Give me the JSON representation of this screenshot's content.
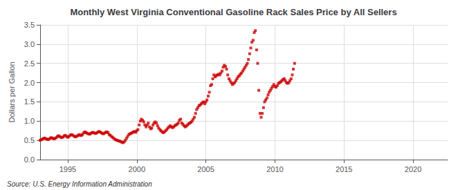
{
  "chart_data": {
    "type": "scatter",
    "title": "Monthly West Virginia Conventional Gasoline Rack Sales Price by All Sellers",
    "ylabel": "Dollars per Gallon",
    "annotations": [
      "Source: U.S. Energy Information Administration"
    ],
    "color": "#cc0000",
    "marker": "square",
    "grid": true,
    "xlim": [
      1993.0,
      2022.5
    ],
    "xticks": [
      1995,
      2000,
      2005,
      2010,
      2015,
      2020
    ],
    "ylim": [
      0.0,
      3.5
    ],
    "yticks": [
      {
        "value": 0.0,
        "label": "0.0"
      },
      0.5,
      {
        "value": 1.0,
        "label": "1.0"
      },
      1.5,
      {
        "value": 2.0,
        "label": "2.0"
      },
      2.5,
      {
        "value": 3.0,
        "label": "3.0"
      },
      3.5
    ],
    "x": [
      1993.0,
      1993.08,
      1993.17,
      1993.25,
      1993.33,
      1993.42,
      1993.5,
      1993.58,
      1993.67,
      1993.75,
      1993.83,
      1993.92,
      1994.0,
      1994.08,
      1994.17,
      1994.25,
      1994.33,
      1994.42,
      1994.5,
      1994.58,
      1994.67,
      1994.75,
      1994.83,
      1994.92,
      1995.0,
      1995.08,
      1995.17,
      1995.25,
      1995.33,
      1995.42,
      1995.5,
      1995.58,
      1995.67,
      1995.75,
      1995.83,
      1995.92,
      1996.0,
      1996.08,
      1996.17,
      1996.25,
      1996.33,
      1996.42,
      1996.5,
      1996.58,
      1996.67,
      1996.75,
      1996.83,
      1996.92,
      1997.0,
      1997.08,
      1997.17,
      1997.25,
      1997.33,
      1997.42,
      1997.5,
      1997.58,
      1997.67,
      1997.75,
      1997.83,
      1997.92,
      1998.0,
      1998.08,
      1998.17,
      1998.25,
      1998.33,
      1998.42,
      1998.5,
      1998.58,
      1998.67,
      1998.75,
      1998.83,
      1998.92,
      1999.0,
      1999.08,
      1999.17,
      1999.25,
      1999.33,
      1999.42,
      1999.5,
      1999.58,
      1999.67,
      1999.75,
      1999.83,
      1999.92,
      2000.0,
      2000.08,
      2000.17,
      2000.25,
      2000.33,
      2000.42,
      2000.5,
      2000.58,
      2000.67,
      2000.75,
      2000.83,
      2000.92,
      2001.0,
      2001.08,
      2001.17,
      2001.25,
      2001.33,
      2001.42,
      2001.5,
      2001.58,
      2001.67,
      2001.75,
      2001.83,
      2001.92,
      2002.0,
      2002.08,
      2002.17,
      2002.25,
      2002.33,
      2002.42,
      2002.5,
      2002.58,
      2002.67,
      2002.75,
      2002.83,
      2002.92,
      2003.0,
      2003.08,
      2003.17,
      2003.25,
      2003.33,
      2003.42,
      2003.5,
      2003.58,
      2003.67,
      2003.75,
      2003.83,
      2003.92,
      2004.0,
      2004.08,
      2004.17,
      2004.25,
      2004.33,
      2004.42,
      2004.5,
      2004.58,
      2004.67,
      2004.75,
      2004.83,
      2004.92,
      2005.0,
      2005.08,
      2005.17,
      2005.25,
      2005.33,
      2005.42,
      2005.5,
      2005.58,
      2005.67,
      2005.75,
      2005.83,
      2005.92,
      2006.0,
      2006.08,
      2006.17,
      2006.25,
      2006.33,
      2006.42,
      2006.5,
      2006.58,
      2006.67,
      2006.75,
      2006.83,
      2006.92,
      2007.0,
      2007.08,
      2007.17,
      2007.25,
      2007.33,
      2007.42,
      2007.5,
      2007.58,
      2007.67,
      2007.75,
      2007.83,
      2007.92,
      2008.0,
      2008.08,
      2008.17,
      2008.25,
      2008.33,
      2008.42,
      2008.5,
      2008.58,
      2008.67,
      2008.75,
      2008.83,
      2008.92,
      2009.0,
      2009.08,
      2009.17,
      2009.25,
      2009.33,
      2009.42,
      2009.5,
      2009.58,
      2009.67,
      2009.75,
      2009.83,
      2009.92,
      2010.0,
      2010.08,
      2010.17,
      2010.25,
      2010.33,
      2010.42,
      2010.5,
      2010.58,
      2010.67,
      2010.75,
      2010.83,
      2010.92,
      2011.0,
      2011.08,
      2011.17,
      2011.25,
      2011.33,
      2011.42
    ],
    "values": [
      0.5,
      0.52,
      0.53,
      0.55,
      0.56,
      0.54,
      0.53,
      0.52,
      0.54,
      0.56,
      0.57,
      0.55,
      0.54,
      0.55,
      0.57,
      0.6,
      0.62,
      0.6,
      0.58,
      0.57,
      0.59,
      0.62,
      0.63,
      0.6,
      0.58,
      0.6,
      0.63,
      0.65,
      0.64,
      0.62,
      0.6,
      0.59,
      0.61,
      0.63,
      0.65,
      0.63,
      0.63,
      0.66,
      0.7,
      0.72,
      0.7,
      0.68,
      0.67,
      0.66,
      0.68,
      0.7,
      0.71,
      0.69,
      0.68,
      0.69,
      0.71,
      0.73,
      0.72,
      0.7,
      0.68,
      0.67,
      0.69,
      0.71,
      0.72,
      0.7,
      0.65,
      0.63,
      0.6,
      0.58,
      0.55,
      0.53,
      0.51,
      0.5,
      0.49,
      0.48,
      0.47,
      0.45,
      0.44,
      0.46,
      0.5,
      0.55,
      0.6,
      0.65,
      0.67,
      0.68,
      0.7,
      0.72,
      0.73,
      0.71,
      0.75,
      0.78,
      0.9,
      1.0,
      1.05,
      1.02,
      0.98,
      0.9,
      0.85,
      0.9,
      0.95,
      0.85,
      0.8,
      0.82,
      0.9,
      0.95,
      0.98,
      0.95,
      0.88,
      0.82,
      0.78,
      0.75,
      0.72,
      0.7,
      0.72,
      0.75,
      0.78,
      0.82,
      0.85,
      0.88,
      0.85,
      0.83,
      0.85,
      0.88,
      0.9,
      0.92,
      0.95,
      1.02,
      1.05,
      0.95,
      0.92,
      0.88,
      0.85,
      0.87,
      0.9,
      0.93,
      0.95,
      0.97,
      1.0,
      1.05,
      1.1,
      1.2,
      1.3,
      1.35,
      1.4,
      1.42,
      1.45,
      1.48,
      1.5,
      1.45,
      1.5,
      1.55,
      1.65,
      1.75,
      1.92,
      1.95,
      2.1,
      2.2,
      2.15,
      2.18,
      2.2,
      2.22,
      2.2,
      2.25,
      2.3,
      2.4,
      2.45,
      2.42,
      2.35,
      2.2,
      2.1,
      2.05,
      2.0,
      1.95,
      1.98,
      2.0,
      2.05,
      2.1,
      2.15,
      2.18,
      2.22,
      2.25,
      2.3,
      2.35,
      2.4,
      2.45,
      2.5,
      2.6,
      2.75,
      2.9,
      3.05,
      3.1,
      3.3,
      3.35,
      2.85,
      2.5,
      1.8,
      1.2,
      1.1,
      1.2,
      1.35,
      1.5,
      1.55,
      1.6,
      1.68,
      1.75,
      1.8,
      1.85,
      1.9,
      1.95,
      1.9,
      1.88,
      1.92,
      1.98,
      2.0,
      2.02,
      2.05,
      2.08,
      2.1,
      2.05,
      2.0,
      1.98,
      2.0,
      2.05,
      2.1,
      2.2,
      2.35,
      2.5
    ]
  }
}
